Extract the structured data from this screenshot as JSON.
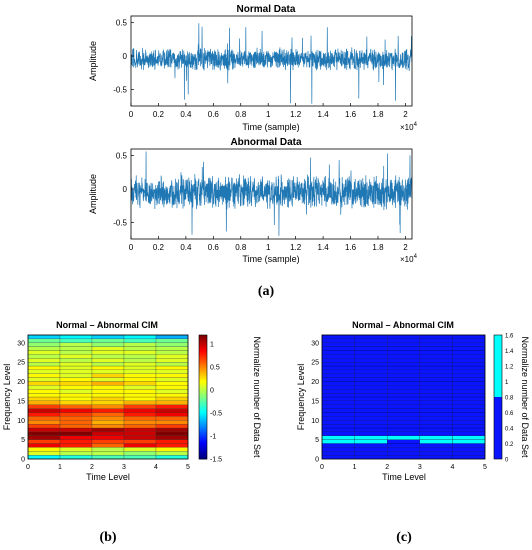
{
  "captions": [
    "(a)",
    "(b)",
    "(c)"
  ],
  "chart_data": [
    {
      "type": "line",
      "title": "Normal Data",
      "xlabel": "Time (sample)",
      "ylabel": "Amplitude",
      "x_exponent": "×10",
      "x_exponent_power": "4",
      "xlim": [
        0,
        20480
      ],
      "ylim": [
        -0.75,
        0.6
      ],
      "xticks": [
        0,
        0.2,
        0.4,
        0.6,
        0.8,
        1,
        1.2,
        1.4,
        1.6,
        1.8,
        2
      ],
      "yticks": [
        0.5,
        0,
        -0.5
      ],
      "color": "#1f77b4",
      "n_samples": 20480,
      "envelope": {
        "baseline": -0.05,
        "typical_half_width": 0.13,
        "max": 0.5,
        "min": -0.72
      }
    },
    {
      "type": "line",
      "title": "Abnormal Data",
      "xlabel": "Time (sample)",
      "ylabel": "Amplitude",
      "x_exponent": "×10",
      "x_exponent_power": "4",
      "xlim": [
        0,
        20480
      ],
      "ylim": [
        -0.75,
        0.6
      ],
      "xticks": [
        0,
        0.2,
        0.4,
        0.6,
        0.8,
        1,
        1.2,
        1.4,
        1.6,
        1.8,
        2
      ],
      "yticks": [
        0.5,
        0,
        -0.5
      ],
      "color": "#1f77b4",
      "n_samples": 20480,
      "envelope": {
        "baseline": -0.05,
        "typical_half_width": 0.2,
        "max": 0.58,
        "min": -0.72
      }
    },
    {
      "type": "heatmap",
      "title": "Normal – Abnormal CIM",
      "xlabel": "Time Level",
      "ylabel": "Frequency Level",
      "xticks": [
        0,
        1,
        2,
        3,
        4,
        5
      ],
      "yticks": [
        0,
        5,
        10,
        15,
        20,
        25,
        30
      ],
      "colorbar_label": "Normalize number of Data Set",
      "colorbar_ticks": [
        1,
        0.5,
        0,
        -0.5,
        -1,
        -1.5
      ],
      "clim": [
        -1.5,
        1.2
      ],
      "colormap": "jet",
      "rows": 32,
      "cols": 5,
      "values": [
        [
          -0.5,
          -0.4,
          -0.3,
          -0.3,
          -0.4
        ],
        [
          0.1,
          0.0,
          0.0,
          -0.1,
          0.0
        ],
        [
          0.2,
          0.1,
          0.0,
          0.1,
          0.2
        ],
        [
          0.9,
          0.8,
          0.6,
          0.9,
          0.8
        ],
        [
          0.7,
          0.8,
          0.7,
          0.7,
          0.8
        ],
        [
          1.1,
          0.9,
          0.9,
          1.0,
          1.1
        ],
        [
          1.2,
          1.2,
          1.0,
          1.0,
          1.3
        ],
        [
          1.0,
          1.0,
          1.1,
          1.0,
          1.1
        ],
        [
          0.7,
          0.6,
          0.5,
          0.6,
          0.7
        ],
        [
          0.5,
          0.6,
          0.4,
          0.5,
          0.5
        ],
        [
          0.6,
          0.6,
          0.5,
          0.6,
          0.6
        ],
        [
          0.8,
          0.7,
          0.6,
          0.8,
          0.9
        ],
        [
          1.0,
          0.9,
          0.8,
          0.9,
          1.0
        ],
        [
          0.7,
          0.6,
          0.5,
          0.7,
          0.8
        ],
        [
          0.4,
          0.3,
          0.3,
          0.4,
          0.4
        ],
        [
          0.3,
          0.2,
          0.3,
          0.2,
          0.3
        ],
        [
          0.2,
          0.2,
          0.2,
          0.2,
          0.2
        ],
        [
          0.2,
          0.1,
          0.2,
          0.2,
          0.1
        ],
        [
          0.1,
          0.2,
          0.2,
          0.1,
          0.2
        ],
        [
          0.3,
          0.3,
          0.4,
          0.3,
          0.2
        ],
        [
          0.1,
          0.2,
          0.1,
          0.2,
          0.1
        ],
        [
          0.2,
          0.1,
          0.3,
          0.2,
          0.2
        ],
        [
          0.1,
          0.1,
          0.1,
          0.1,
          0.1
        ],
        [
          0.2,
          0.1,
          0.2,
          0.1,
          0.2
        ],
        [
          0.0,
          0.1,
          0.0,
          0.1,
          0.0
        ],
        [
          0.1,
          0.0,
          0.1,
          0.0,
          0.1
        ],
        [
          0.0,
          0.1,
          0.0,
          0.0,
          0.1
        ],
        [
          0.1,
          0.0,
          0.1,
          0.1,
          0.0
        ],
        [
          0.0,
          0.0,
          0.1,
          0.0,
          0.0
        ],
        [
          -0.1,
          0.0,
          -0.1,
          0.0,
          -0.1
        ],
        [
          -0.2,
          -0.3,
          -0.2,
          -0.3,
          -0.2
        ],
        [
          -0.6,
          -0.5,
          -0.6,
          -0.5,
          -0.7
        ]
      ]
    },
    {
      "type": "heatmap",
      "title": "Normal – Abnormal CIM",
      "xlabel": "Time Level",
      "ylabel": "Frequency Level",
      "xticks": [
        0,
        1,
        2,
        3,
        4,
        5
      ],
      "yticks": [
        0,
        5,
        10,
        15,
        20,
        25,
        30
      ],
      "colorbar_label": "Normalize number of Data Set",
      "colorbar_ticks": [
        1.6,
        1.4,
        1.2,
        1,
        0.8,
        0.6,
        0.4,
        0.2,
        0
      ],
      "clim": [
        0,
        1.6
      ],
      "low_color": "#0a14ff",
      "high_color": "#00ffff",
      "threshold": 0.8,
      "rows": 32,
      "cols": 5,
      "values_default": 0,
      "high_cells": [
        [
          5,
          0
        ],
        [
          5,
          1
        ],
        [
          5,
          2
        ],
        [
          5,
          3
        ],
        [
          5,
          4
        ],
        [
          4,
          0
        ],
        [
          4,
          1
        ],
        [
          4,
          3
        ],
        [
          4,
          4
        ]
      ]
    }
  ]
}
